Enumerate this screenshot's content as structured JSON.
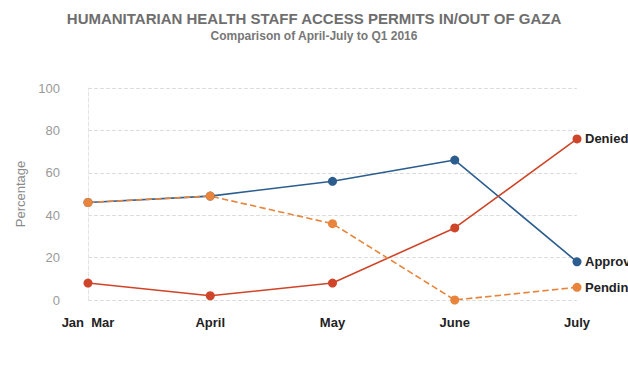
{
  "chart_data": {
    "type": "line",
    "title": "HUMANITARIAN HEALTH STAFF ACCESS PERMITS IN/OUT OF GAZA",
    "subtitle": "Comparison of April-July to Q1 2016",
    "y_label": "Percentage",
    "categories": [
      "Jan  Mar",
      "April",
      "May",
      "June",
      "July"
    ],
    "series": [
      {
        "name": "Approved",
        "color": "#2c5d8f",
        "line_style": "solid",
        "marker": "circle",
        "values": [
          46,
          49,
          56,
          66,
          18
        ]
      },
      {
        "name": "Denied",
        "color": "#cf4529",
        "line_style": "solid",
        "marker": "circle",
        "values": [
          8,
          2,
          8,
          34,
          76
        ]
      },
      {
        "name": "Pending",
        "color": "#e8843c",
        "line_style": "dashed",
        "marker": "circle",
        "values": [
          46,
          49,
          36,
          0,
          6
        ]
      }
    ],
    "ylim": [
      0,
      100
    ],
    "yticks": [
      0,
      20,
      40,
      60,
      80,
      100
    ],
    "grid": true
  }
}
